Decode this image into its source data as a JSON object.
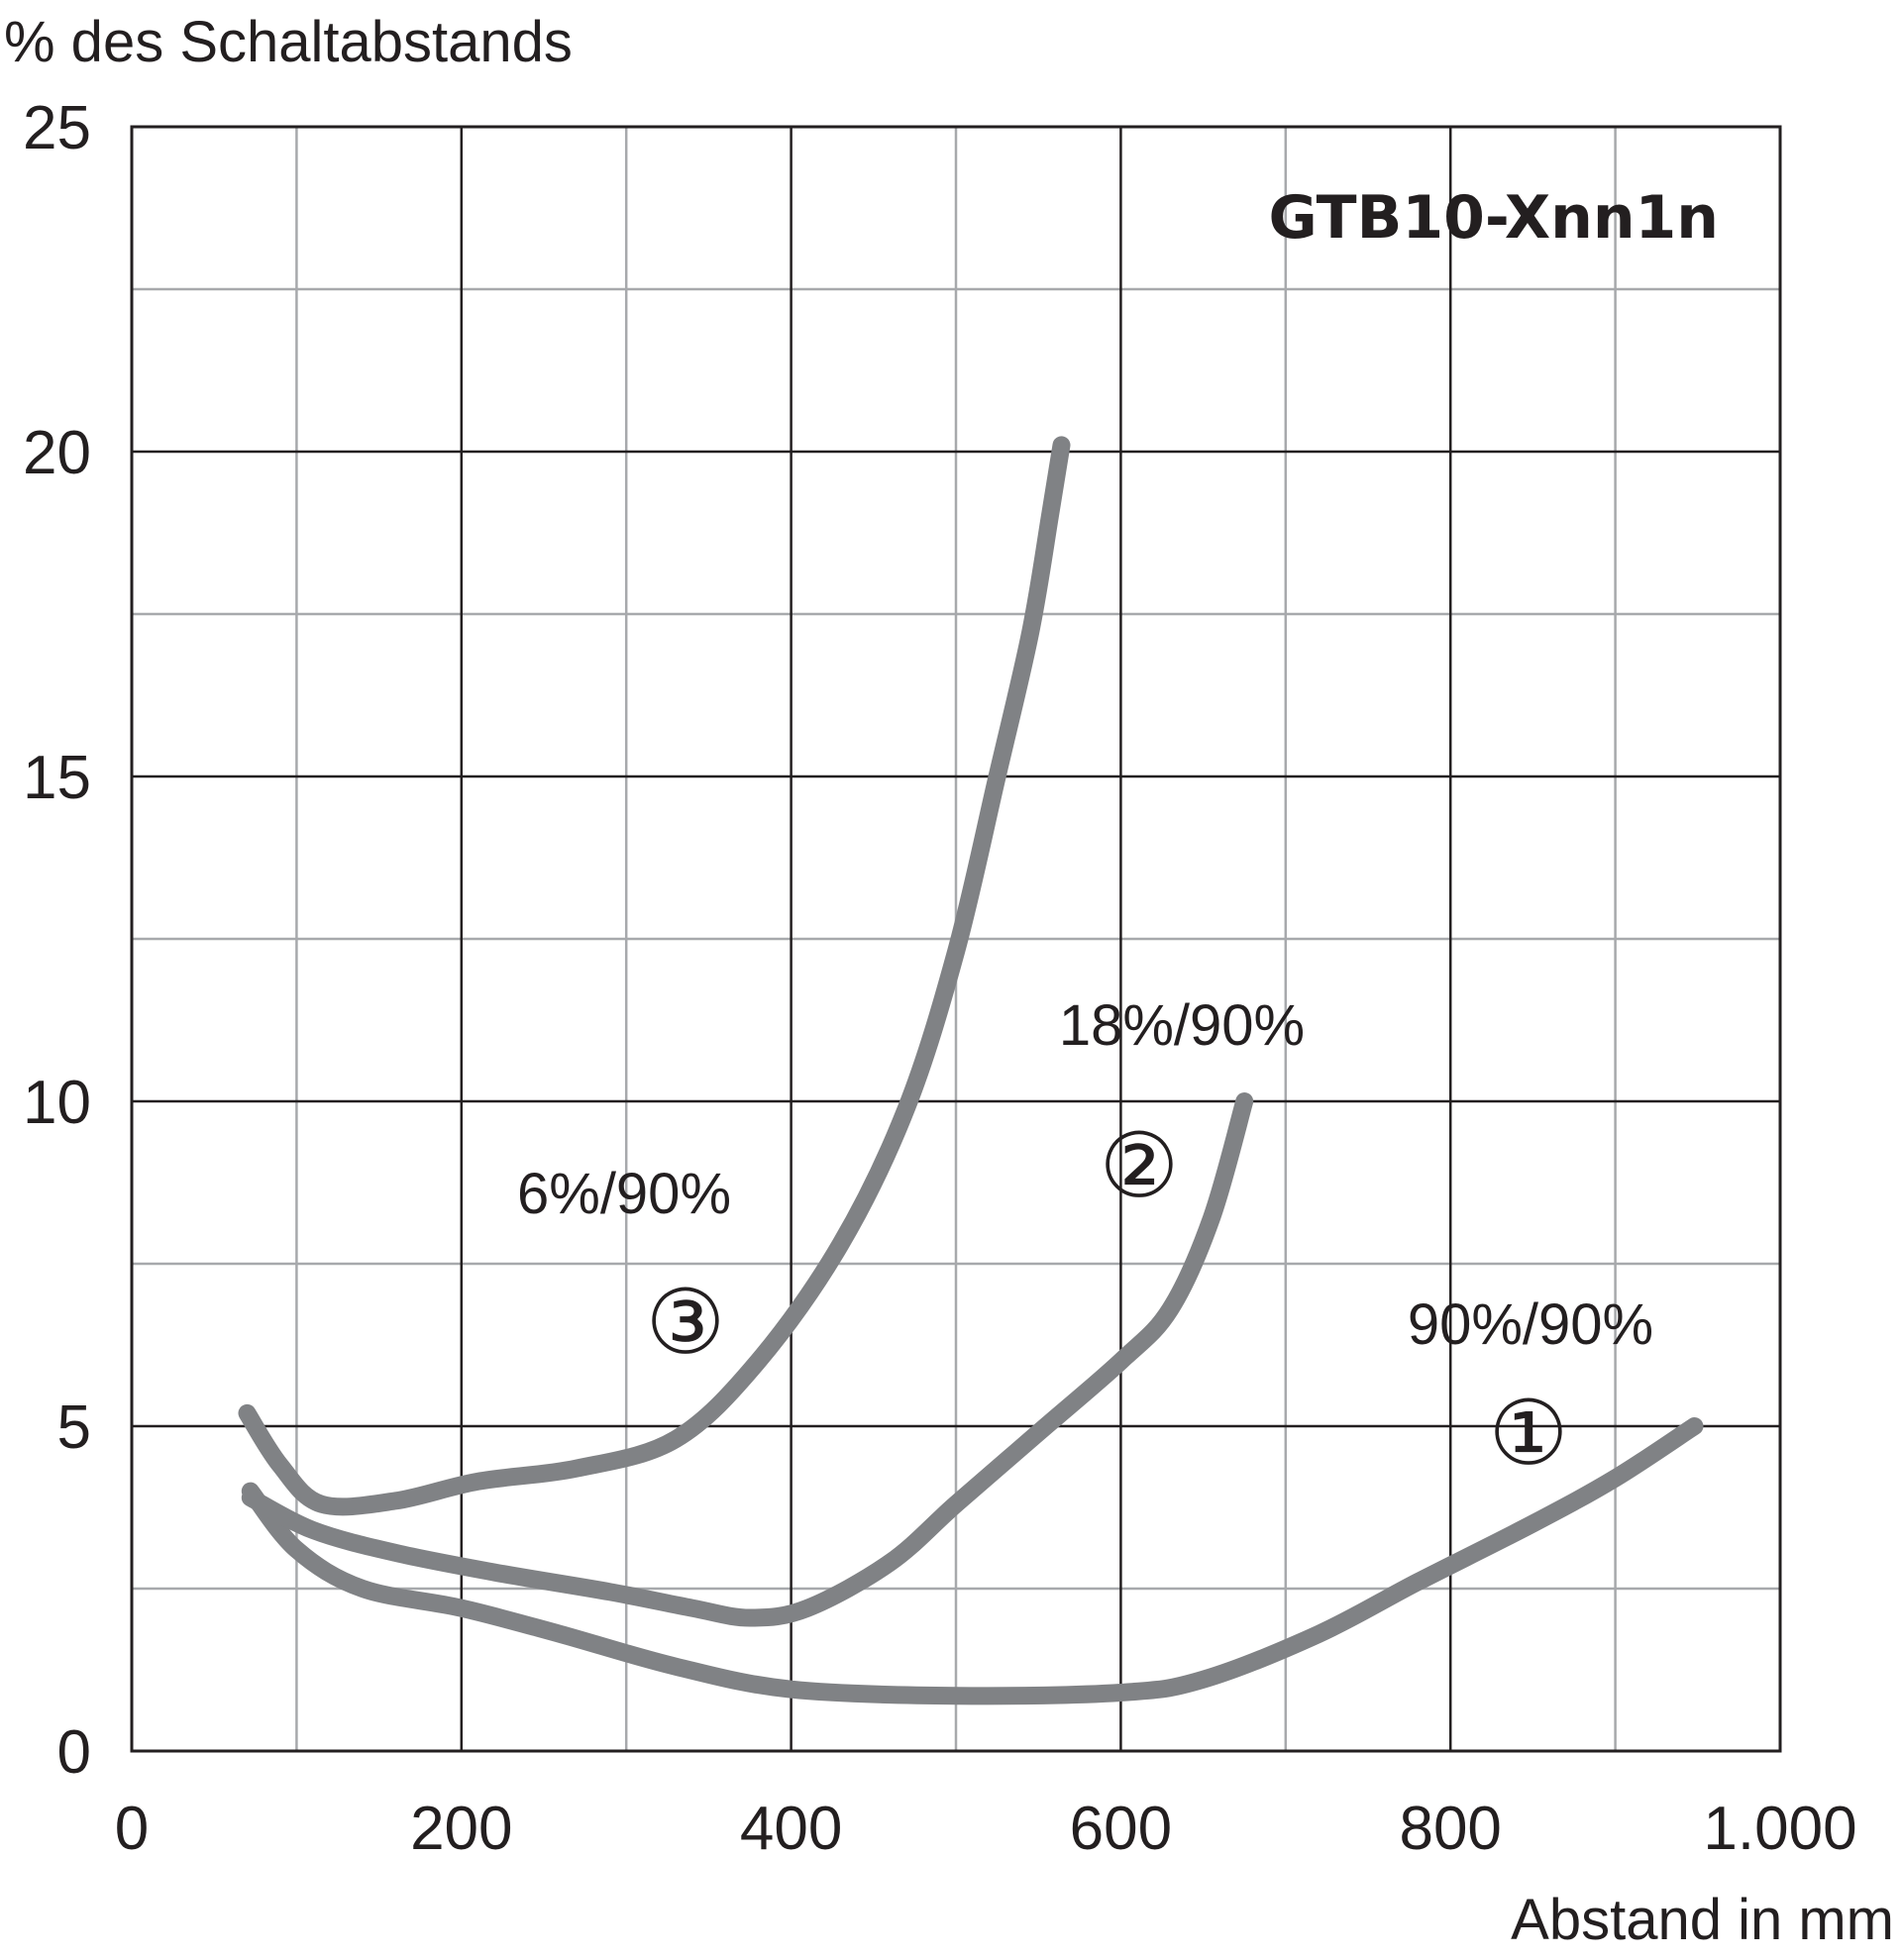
{
  "chart_data": {
    "type": "line",
    "title": "GTB10-Xnn1n",
    "ylabel": "% des Schaltabstands",
    "xlabel": "Abstand in mm",
    "xlim": [
      0,
      1000
    ],
    "ylim": [
      0,
      25
    ],
    "x_ticks": [
      {
        "value": 0,
        "label": "0"
      },
      {
        "value": 200,
        "label": "200"
      },
      {
        "value": 400,
        "label": "400"
      },
      {
        "value": 600,
        "label": "600"
      },
      {
        "value": 800,
        "label": "800"
      },
      {
        "value": 1000,
        "label": "1.000"
      }
    ],
    "y_ticks": [
      {
        "value": 0,
        "label": "0"
      },
      {
        "value": 5,
        "label": "5"
      },
      {
        "value": 10,
        "label": "10"
      },
      {
        "value": 15,
        "label": "15"
      },
      {
        "value": 20,
        "label": "20"
      },
      {
        "value": 25,
        "label": "25"
      }
    ],
    "x_minor_grid": [
      100,
      300,
      500,
      700,
      900
    ],
    "y_minor_grid": [
      2.5,
      7.5,
      12.5,
      17.5,
      22.5
    ],
    "grid": true,
    "series_color": "#808285",
    "series": [
      {
        "name": "90%/90%",
        "marker": "①",
        "points": [
          [
            72,
            4.0
          ],
          [
            100,
            3.1
          ],
          [
            140,
            2.5
          ],
          [
            200,
            2.2
          ],
          [
            260,
            1.8
          ],
          [
            330,
            1.3
          ],
          [
            400,
            0.95
          ],
          [
            500,
            0.85
          ],
          [
            600,
            0.9
          ],
          [
            650,
            1.1
          ],
          [
            720,
            1.8
          ],
          [
            780,
            2.6
          ],
          [
            850,
            3.5
          ],
          [
            900,
            4.2
          ],
          [
            948,
            5.0
          ]
        ]
      },
      {
        "name": "18%/90%",
        "marker": "②",
        "points": [
          [
            72,
            3.9
          ],
          [
            110,
            3.4
          ],
          [
            160,
            3.05
          ],
          [
            220,
            2.75
          ],
          [
            290,
            2.45
          ],
          [
            340,
            2.2
          ],
          [
            375,
            2.05
          ],
          [
            410,
            2.2
          ],
          [
            460,
            2.9
          ],
          [
            500,
            3.8
          ],
          [
            550,
            4.9
          ],
          [
            600,
            6.0
          ],
          [
            630,
            6.8
          ],
          [
            655,
            8.2
          ],
          [
            675,
            10.0
          ]
        ]
      },
      {
        "name": "6%/90%",
        "marker": "③",
        "points": [
          [
            70,
            5.2
          ],
          [
            90,
            4.4
          ],
          [
            115,
            3.8
          ],
          [
            160,
            3.85
          ],
          [
            210,
            4.15
          ],
          [
            270,
            4.35
          ],
          [
            330,
            4.8
          ],
          [
            380,
            6.0
          ],
          [
            430,
            7.8
          ],
          [
            470,
            9.9
          ],
          [
            500,
            12.3
          ],
          [
            525,
            15.0
          ],
          [
            545,
            17.2
          ],
          [
            557,
            19.0
          ],
          [
            564,
            20.1
          ]
        ]
      }
    ]
  },
  "annotations": {
    "label_1": "90%/90%",
    "label_2": "18%/90%",
    "label_3": "6%/90%",
    "marker_1": "①",
    "marker_2": "②",
    "marker_3": "③"
  }
}
